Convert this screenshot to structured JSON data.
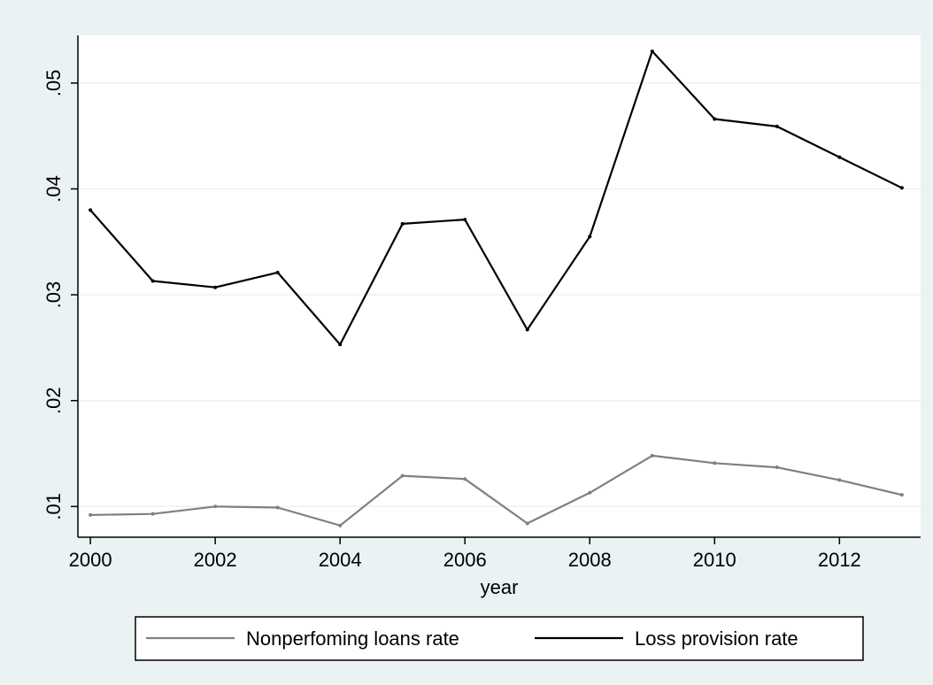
{
  "chart_data": {
    "type": "line",
    "title": "",
    "xlabel": "year",
    "ylabel": "",
    "x": [
      2000,
      2001,
      2002,
      2003,
      2004,
      2005,
      2006,
      2007,
      2008,
      2009,
      2010,
      2011,
      2012,
      2013
    ],
    "x_ticks": [
      "2000",
      "2002",
      "2004",
      "2006",
      "2008",
      "2010",
      "2012"
    ],
    "y_ticks": [
      ".01",
      ".02",
      ".03",
      ".04",
      ".05"
    ],
    "xlim": [
      1999.8,
      2013.3
    ],
    "ylim": [
      0.0071,
      0.0545
    ],
    "grid": true,
    "legend_position": "bottom",
    "series": [
      {
        "name": "Nonperfoming loans rate",
        "color": "#808080",
        "values": [
          0.0092,
          0.0093,
          0.01,
          0.0099,
          0.0082,
          0.0129,
          0.0126,
          0.0084,
          0.0113,
          0.0148,
          0.0141,
          0.0137,
          0.0125,
          0.0111
        ]
      },
      {
        "name": "Loss provision rate",
        "color": "#000000",
        "values": [
          0.038,
          0.0313,
          0.0307,
          0.0321,
          0.0253,
          0.0367,
          0.0371,
          0.0267,
          0.0355,
          0.053,
          0.0466,
          0.0459,
          0.043,
          0.0401
        ]
      }
    ]
  }
}
